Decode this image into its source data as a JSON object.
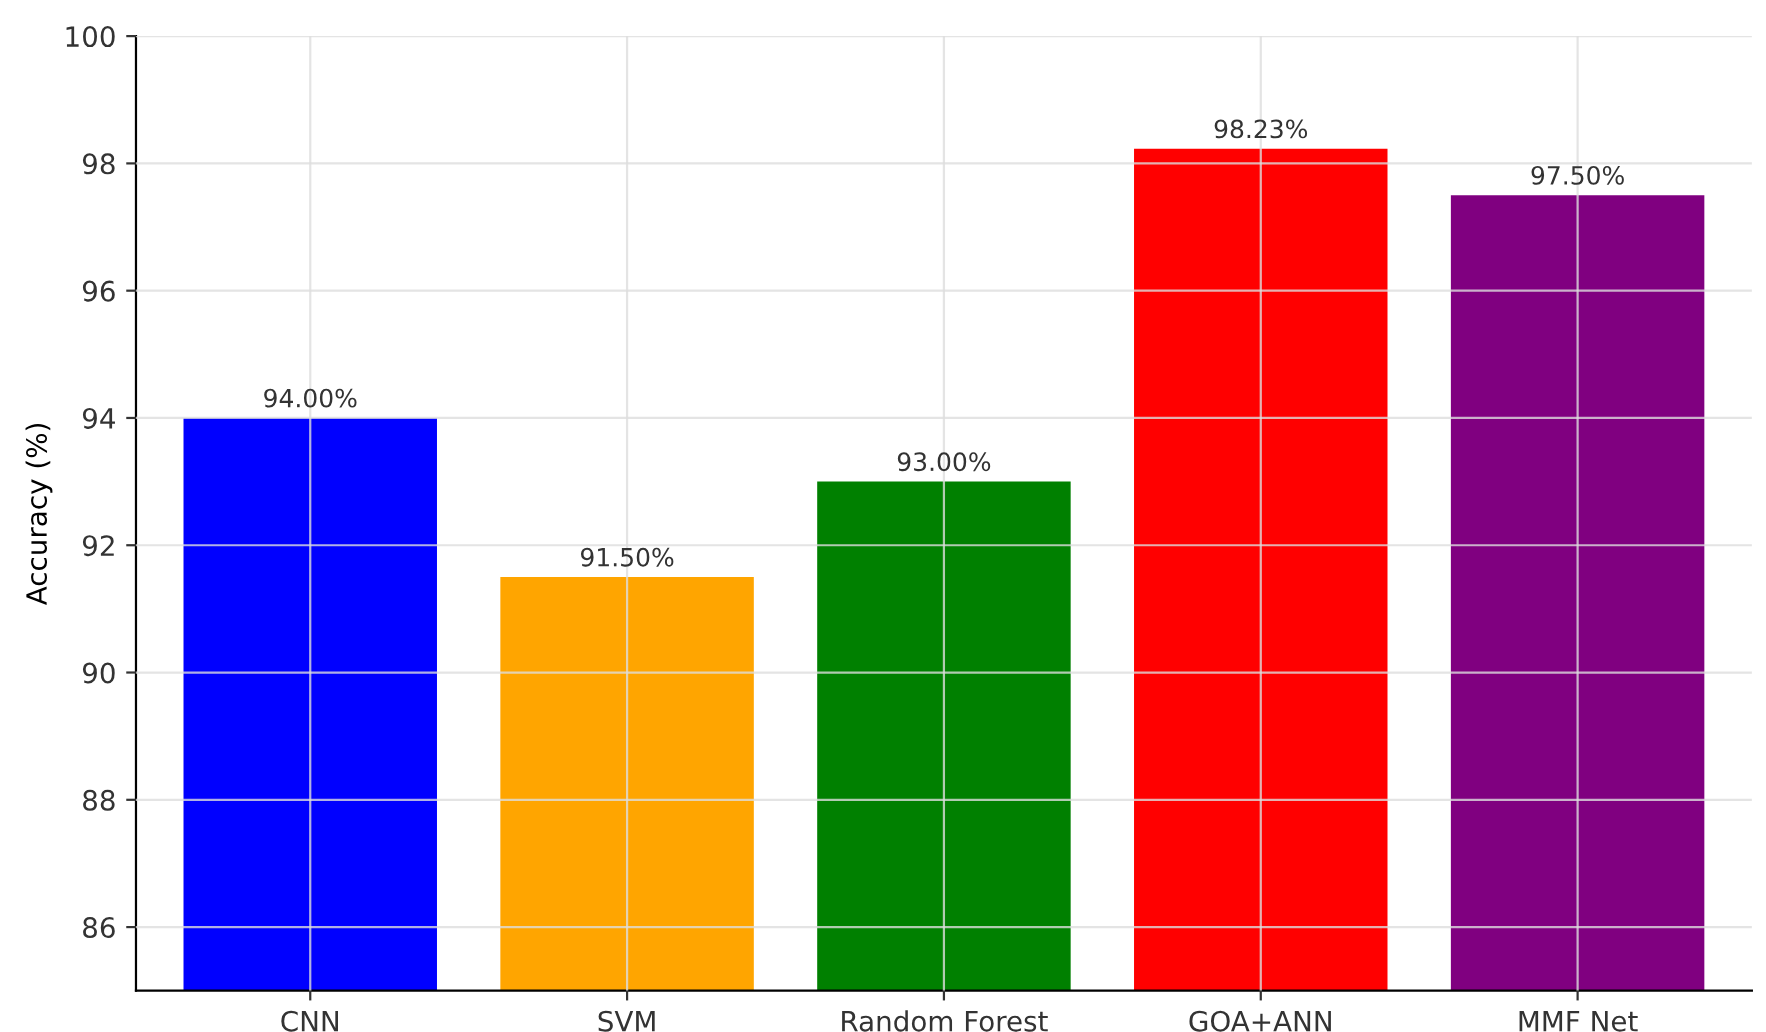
{
  "chart_data": {
    "type": "bar",
    "ylabel": "Accuracy (%)",
    "categories": [
      "CNN",
      "SVM",
      "Random Forest",
      "GOA+ANN",
      "MMF Net"
    ],
    "values": [
      94.0,
      91.5,
      93.0,
      98.23,
      97.5
    ],
    "value_labels": [
      "94.00%",
      "91.50%",
      "93.00%",
      "98.23%",
      "97.50%"
    ],
    "colors": [
      "#0000ff",
      "#ffa500",
      "#008000",
      "#ff0000",
      "#800080"
    ],
    "ylim": [
      85,
      100
    ],
    "yticks": [
      86,
      88,
      90,
      92,
      94,
      96,
      98,
      100
    ],
    "grid": true
  }
}
